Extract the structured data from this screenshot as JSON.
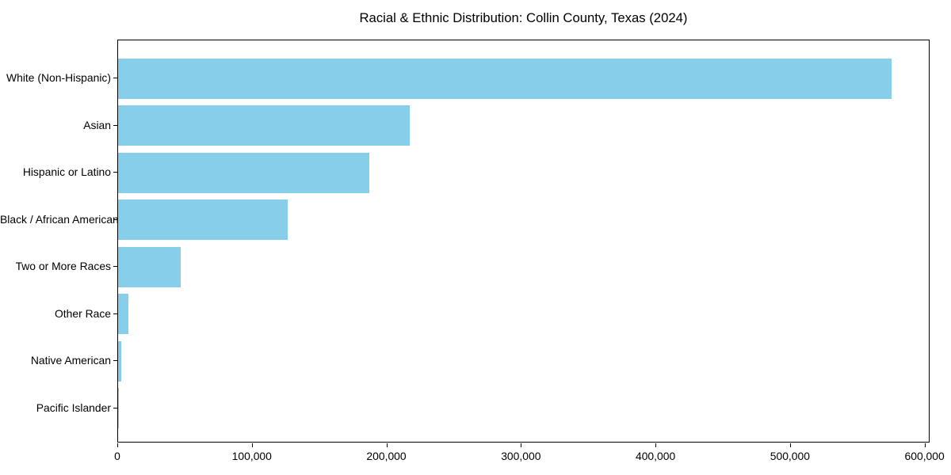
{
  "colors": {
    "bar": "#87CEEB",
    "axis": "#000000",
    "text": "#000000",
    "background": "#FFFFFF"
  },
  "chart_data": {
    "type": "bar",
    "orientation": "horizontal",
    "title": "Racial & Ethnic Distribution: Collin County, Texas (2024)",
    "xlabel": "",
    "ylabel": "",
    "grid": false,
    "legend": false,
    "categories": [
      "White (Non-Hispanic)",
      "Asian",
      "Hispanic or Latino",
      "Black / African American",
      "Two or More Races",
      "Other Race",
      "Native American",
      "Pacific Islander"
    ],
    "values": [
      575000,
      217000,
      186500,
      126000,
      46500,
      7600,
      2400,
      500
    ],
    "xlim": [
      0,
      603750
    ],
    "xticks": [
      0,
      100000,
      200000,
      300000,
      400000,
      500000,
      600000
    ],
    "xtick_labels": [
      "0",
      "100,000",
      "200,000",
      "300,000",
      "400,000",
      "500,000",
      "600,000"
    ]
  }
}
